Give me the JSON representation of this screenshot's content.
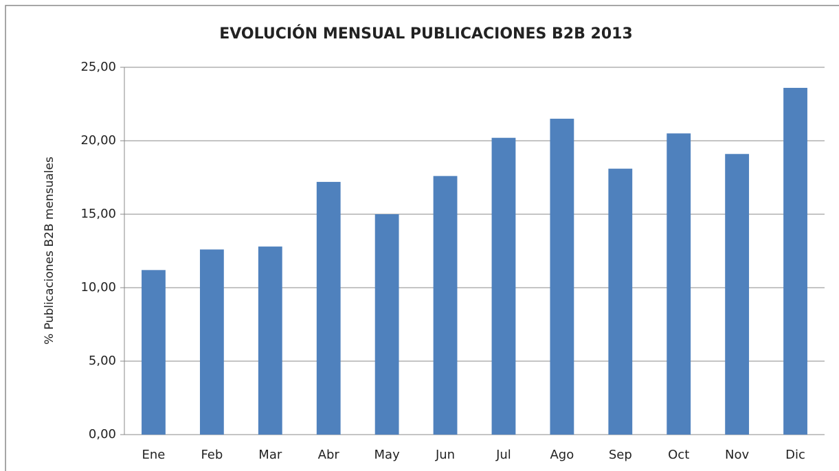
{
  "chart_data": {
    "type": "bar",
    "title": "EVOLUCIÓN MENSUAL PUBLICACIONES B2B 2013",
    "y_axis_label": "% Publicaciones B2B mensuales",
    "categories": [
      "Ene",
      "Feb",
      "Mar",
      "Abr",
      "May",
      "Jun",
      "Jul",
      "Ago",
      "Sep",
      "Oct",
      "Nov",
      "Dic"
    ],
    "values": [
      11.2,
      12.6,
      12.8,
      17.2,
      15.0,
      17.6,
      20.2,
      21.5,
      18.1,
      20.5,
      19.1,
      23.6
    ],
    "color": "#4f81bd",
    "ylim": [
      0,
      25
    ],
    "yticks": [
      {
        "value": 0,
        "label": "0,00"
      },
      {
        "value": 5,
        "label": "5,00"
      },
      {
        "value": 10,
        "label": "10,00"
      },
      {
        "value": 15,
        "label": "15,00"
      },
      {
        "value": 20,
        "label": "20,00"
      },
      {
        "value": 25,
        "label": "25,00"
      }
    ],
    "grid": true
  }
}
